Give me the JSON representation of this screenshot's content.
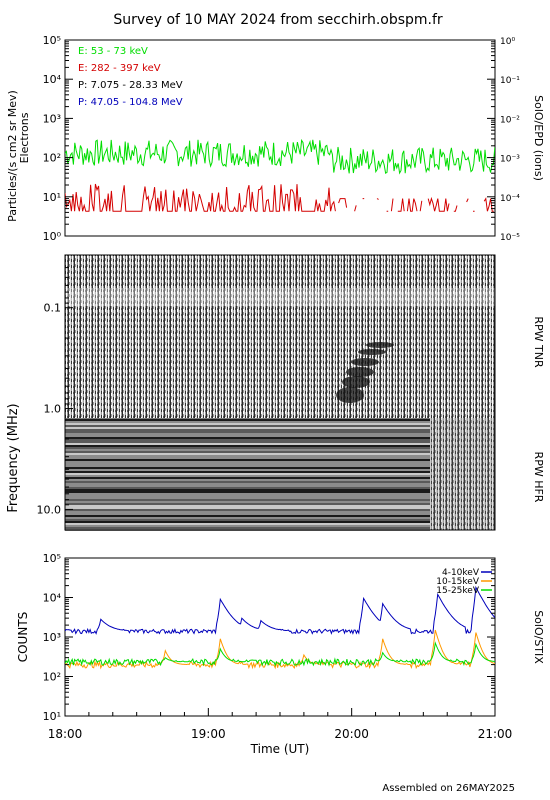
{
  "title": "Survey of 10 MAY 2024 from secchirh.obspm.fr",
  "footer": "Assembled on 26MAY2025",
  "colors": {
    "green": "#00dd00",
    "red": "#d40000",
    "black": "#000000",
    "blue": "#0000bb",
    "orange": "#ff9900"
  },
  "chart_data": [
    {
      "type": "line",
      "panel": "particles",
      "ylabel": "Particles/(s cm2 sr Mev)",
      "ylabel2": "Electrons",
      "right_label": "SolO/EPD (ions)",
      "yscale": "log",
      "ylim": [
        1,
        100000
      ],
      "y_ticks": [
        "10^0",
        "10^1",
        "10^2",
        "10^3",
        "10^4",
        "10^5"
      ],
      "y2lim": [
        1e-05,
        1
      ],
      "y2_ticks": [
        "10^-5",
        "10^-4",
        "10^-3",
        "10^-2",
        "10^-1",
        "10^0"
      ],
      "legend": [
        {
          "text": "E: 53 - 73 keV",
          "color": "#00dd00"
        },
        {
          "text": "E: 282 - 397 keV",
          "color": "#d40000"
        },
        {
          "text": "P: 7.075 - 28.33 MeV",
          "color": "#000000"
        },
        {
          "text": "P: 47.05 - 104.8 MeV",
          "color": "#0000bb"
        }
      ],
      "series": [
        {
          "name": "E: 53 - 73 keV",
          "color": "#00dd00",
          "typical": 100,
          "range": [
            35,
            280
          ]
        },
        {
          "name": "E: 282 - 397 keV",
          "color": "#d40000",
          "typical": 8,
          "range": [
            4,
            25
          ]
        }
      ]
    },
    {
      "type": "heatmap",
      "panel": "radio",
      "ylabel": "Frequency (MHz)",
      "yscale": "log",
      "ylim": [
        0.03,
        16
      ],
      "y_ticks": [
        "0.1",
        "1.0",
        "10.0"
      ],
      "right_labels": [
        "RPW TNR",
        "RPW HFR"
      ]
    },
    {
      "type": "line",
      "panel": "stix",
      "ylabel": "COUNTS",
      "right_label": "SolO/STIX",
      "yscale": "log",
      "ylim": [
        10,
        100000
      ],
      "y_ticks": [
        "10^1",
        "10^2",
        "10^3",
        "10^4",
        "10^5"
      ],
      "xlabel": "Time (UT)",
      "x_ticks": [
        "18:00",
        "19:00",
        "20:00",
        "21:00"
      ],
      "xlim": [
        "18:00",
        "21:00"
      ],
      "series": [
        {
          "name": "4-10keV",
          "color": "#0000bb",
          "base": 1400,
          "peaks": [
            {
              "t": "18:15",
              "v": 2800
            },
            {
              "t": "19:05",
              "v": 9000
            },
            {
              "t": "19:14",
              "v": 3000
            },
            {
              "t": "19:22",
              "v": 2600
            },
            {
              "t": "20:05",
              "v": 9500
            },
            {
              "t": "20:13",
              "v": 7000
            },
            {
              "t": "20:36",
              "v": 12000
            },
            {
              "t": "20:52",
              "v": 18000
            },
            {
              "t": "20:56",
              "v": 3000
            }
          ]
        },
        {
          "name": "10-15keV",
          "color": "#ff9900",
          "base": 200,
          "peaks": [
            {
              "t": "18:42",
              "v": 450
            },
            {
              "t": "19:05",
              "v": 900
            },
            {
              "t": "19:40",
              "v": 350
            },
            {
              "t": "20:13",
              "v": 900
            },
            {
              "t": "20:35",
              "v": 1500
            },
            {
              "t": "20:52",
              "v": 1300
            }
          ]
        },
        {
          "name": "15-25keV",
          "color": "#00dd00",
          "base": 235,
          "peaks": [
            {
              "t": "18:42",
              "v": 300
            },
            {
              "t": "19:05",
              "v": 500
            },
            {
              "t": "20:13",
              "v": 400
            },
            {
              "t": "20:35",
              "v": 700
            },
            {
              "t": "20:52",
              "v": 650
            }
          ]
        }
      ]
    }
  ]
}
